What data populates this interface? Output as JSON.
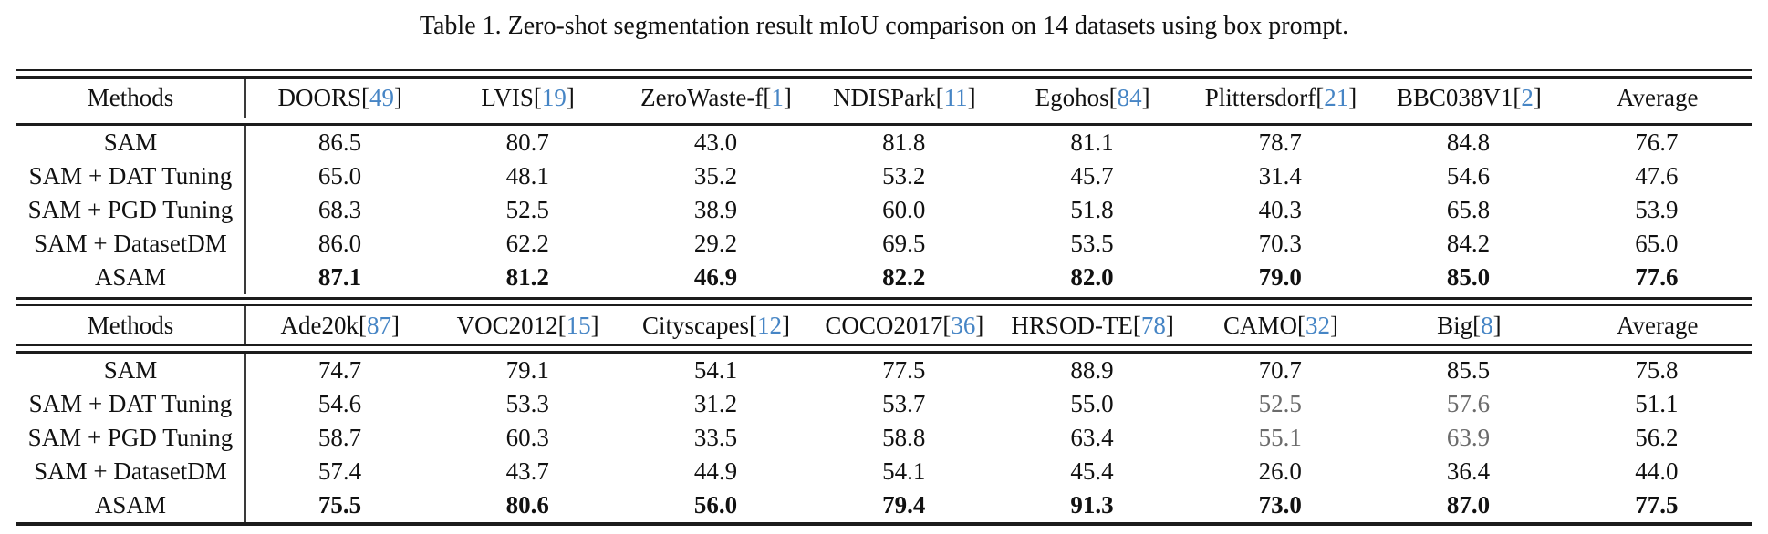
{
  "title": "Table 1. Zero-shot segmentation result mIoU comparison on 14 datasets using box prompt.",
  "colors": {
    "citation": "#4685c5",
    "text": "#111111",
    "muted_value": "#6b6b6b"
  },
  "chart_data": {
    "type": "table",
    "title": "Table 1. Zero-shot segmentation result mIoU comparison on 14 datasets using box prompt.",
    "metric": "mIoU",
    "sections": [
      {
        "datasets": [
          "DOORS",
          "LVIS",
          "ZeroWaste-f",
          "NDISPark",
          "Egohos",
          "Plittersdorf",
          "BBC038V1",
          "Average"
        ],
        "series": [
          {
            "name": "SAM",
            "values": [
              86.5,
              80.7,
              43.0,
              81.8,
              81.1,
              78.7,
              84.8,
              76.7
            ]
          },
          {
            "name": "SAM + DAT Tuning",
            "values": [
              65.0,
              48.1,
              35.2,
              53.2,
              45.7,
              31.4,
              54.6,
              47.6
            ]
          },
          {
            "name": "SAM + PGD Tuning",
            "values": [
              68.3,
              52.5,
              38.9,
              60.0,
              51.8,
              40.3,
              65.8,
              53.9
            ]
          },
          {
            "name": "SAM + DatasetDM",
            "values": [
              86.0,
              62.2,
              29.2,
              69.5,
              53.5,
              70.3,
              84.2,
              65.0
            ]
          },
          {
            "name": "ASAM",
            "values": [
              87.1,
              81.2,
              46.9,
              82.2,
              82.0,
              79.0,
              85.0,
              77.6
            ]
          }
        ]
      },
      {
        "datasets": [
          "Ade20k",
          "VOC2012",
          "Cityscapes",
          "COCO2017",
          "HRSOD-TE",
          "CAMO",
          "Big",
          "Average"
        ],
        "series": [
          {
            "name": "SAM",
            "values": [
              74.7,
              79.1,
              54.1,
              77.5,
              88.9,
              70.7,
              85.5,
              75.8
            ]
          },
          {
            "name": "SAM + DAT Tuning",
            "values": [
              54.6,
              53.3,
              31.2,
              53.7,
              55.0,
              52.5,
              57.6,
              51.1
            ]
          },
          {
            "name": "SAM + PGD Tuning",
            "values": [
              58.7,
              60.3,
              33.5,
              58.8,
              63.4,
              55.1,
              63.9,
              56.2
            ]
          },
          {
            "name": "SAM + DatasetDM",
            "values": [
              57.4,
              43.7,
              44.9,
              54.1,
              45.4,
              26.0,
              36.4,
              44.0
            ]
          },
          {
            "name": "ASAM",
            "values": [
              75.5,
              80.6,
              56.0,
              79.4,
              91.3,
              73.0,
              87.0,
              77.5
            ]
          }
        ]
      }
    ]
  },
  "tables": [
    {
      "methods_header": "Methods",
      "columns": [
        {
          "name": "DOORS",
          "cite": "49"
        },
        {
          "name": "LVIS",
          "cite": "19"
        },
        {
          "name": "ZeroWaste-f",
          "cite": "1"
        },
        {
          "name": "NDISPark",
          "cite": "11"
        },
        {
          "name": "Egohos",
          "cite": "84"
        },
        {
          "name": "Plittersdorf",
          "cite": "21"
        },
        {
          "name": "BBC038V1",
          "cite": "2"
        },
        {
          "name": "Average",
          "cite": null
        }
      ],
      "rows": [
        {
          "method": "SAM",
          "values": [
            "86.5",
            "80.7",
            "43.0",
            "81.8",
            "81.1",
            "78.7",
            "84.8",
            "76.7"
          ],
          "bold": false,
          "muted": []
        },
        {
          "method": "SAM + DAT Tuning",
          "values": [
            "65.0",
            "48.1",
            "35.2",
            "53.2",
            "45.7",
            "31.4",
            "54.6",
            "47.6"
          ],
          "bold": false,
          "muted": []
        },
        {
          "method": "SAM + PGD Tuning",
          "values": [
            "68.3",
            "52.5",
            "38.9",
            "60.0",
            "51.8",
            "40.3",
            "65.8",
            "53.9"
          ],
          "bold": false,
          "muted": []
        },
        {
          "method": "SAM + DatasetDM",
          "values": [
            "86.0",
            "62.2",
            "29.2",
            "69.5",
            "53.5",
            "70.3",
            "84.2",
            "65.0"
          ],
          "bold": false,
          "muted": []
        },
        {
          "method": "ASAM",
          "values": [
            "87.1",
            "81.2",
            "46.9",
            "82.2",
            "82.0",
            "79.0",
            "85.0",
            "77.6"
          ],
          "bold": true,
          "muted": []
        }
      ]
    },
    {
      "methods_header": "Methods",
      "columns": [
        {
          "name": "Ade20k",
          "cite": "87"
        },
        {
          "name": "VOC2012",
          "cite": "15"
        },
        {
          "name": "Cityscapes",
          "cite": "12"
        },
        {
          "name": "COCO2017",
          "cite": "36"
        },
        {
          "name": "HRSOD-TE",
          "cite": "78"
        },
        {
          "name": "CAMO",
          "cite": "32"
        },
        {
          "name": "Big",
          "cite": "8"
        },
        {
          "name": "Average",
          "cite": null
        }
      ],
      "rows": [
        {
          "method": "SAM",
          "values": [
            "74.7",
            "79.1",
            "54.1",
            "77.5",
            "88.9",
            "70.7",
            "85.5",
            "75.8"
          ],
          "bold": false,
          "muted": []
        },
        {
          "method": "SAM + DAT Tuning",
          "values": [
            "54.6",
            "53.3",
            "31.2",
            "53.7",
            "55.0",
            "52.5",
            "57.6",
            "51.1"
          ],
          "bold": false,
          "muted": [
            5,
            6
          ]
        },
        {
          "method": "SAM + PGD Tuning",
          "values": [
            "58.7",
            "60.3",
            "33.5",
            "58.8",
            "63.4",
            "55.1",
            "63.9",
            "56.2"
          ],
          "bold": false,
          "muted": [
            5,
            6
          ]
        },
        {
          "method": "SAM + DatasetDM",
          "values": [
            "57.4",
            "43.7",
            "44.9",
            "54.1",
            "45.4",
            "26.0",
            "36.4",
            "44.0"
          ],
          "bold": false,
          "muted": []
        },
        {
          "method": "ASAM",
          "values": [
            "75.5",
            "80.6",
            "56.0",
            "79.4",
            "91.3",
            "73.0",
            "87.0",
            "77.5"
          ],
          "bold": true,
          "muted": []
        }
      ]
    }
  ]
}
